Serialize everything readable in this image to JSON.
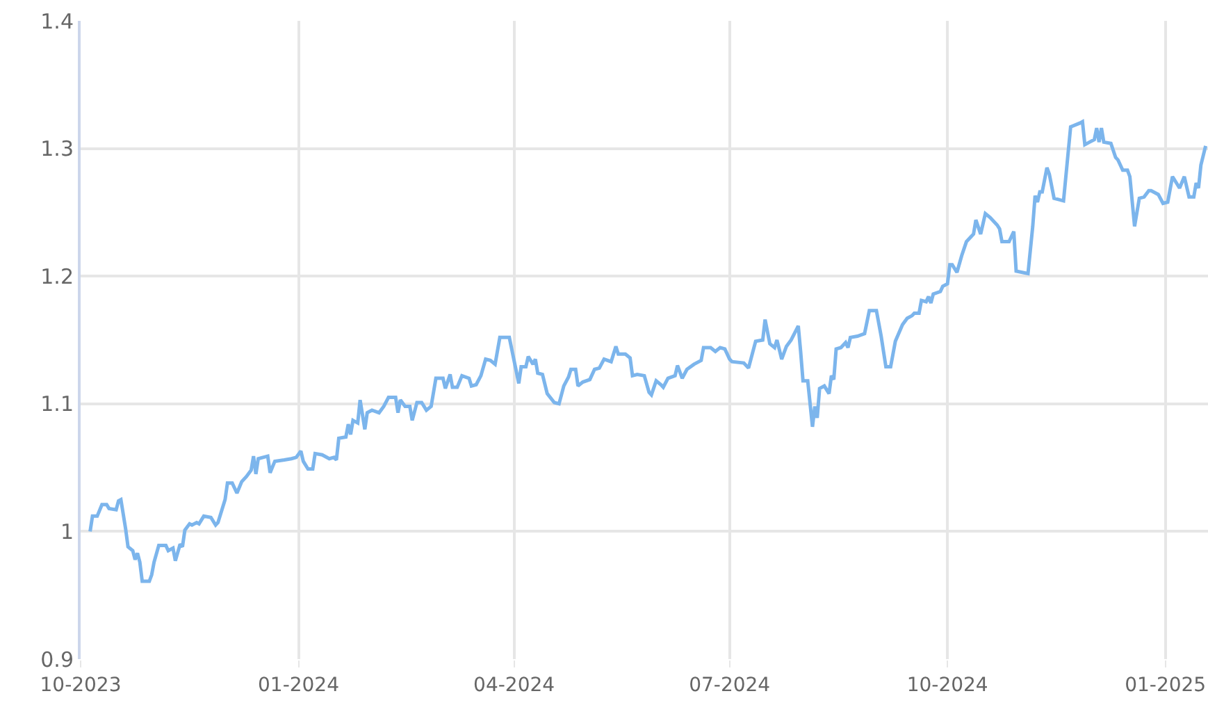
{
  "chart_data": {
    "type": "line",
    "xlim": [
      "2023-10-01",
      "2025-01-19"
    ],
    "ylim": [
      0.9,
      1.4
    ],
    "xticks": [
      {
        "value": "2023-10-01",
        "label": "10-2023"
      },
      {
        "value": "2024-01-01",
        "label": "01-2024"
      },
      {
        "value": "2024-04-01",
        "label": "04-2024"
      },
      {
        "value": "2024-07-01",
        "label": "07-2024"
      },
      {
        "value": "2024-10-01",
        "label": "10-2024"
      },
      {
        "value": "2025-01-01",
        "label": "01-2025"
      }
    ],
    "yticks": [
      0.9,
      1,
      1.1,
      1.2,
      1.3,
      1.4
    ],
    "grid": true,
    "marker": "none",
    "line_style": "solid",
    "x": [
      "2023-10-05",
      "2023-10-06",
      "2023-10-08",
      "2023-10-10",
      "2023-10-12",
      "2023-10-13",
      "2023-10-16",
      "2023-10-17",
      "2023-10-18",
      "2023-10-20",
      "2023-10-21",
      "2023-10-23",
      "2023-10-24",
      "2023-10-25",
      "2023-10-26",
      "2023-10-27",
      "2023-10-30",
      "2023-10-31",
      "2023-11-01",
      "2023-11-03",
      "2023-11-06",
      "2023-11-07",
      "2023-11-09",
      "2023-11-10",
      "2023-11-12",
      "2023-11-13",
      "2023-11-14",
      "2023-11-16",
      "2023-11-17",
      "2023-11-19",
      "2023-11-20",
      "2023-11-22",
      "2023-11-25",
      "2023-11-27",
      "2023-11-28",
      "2023-12-01",
      "2023-12-02",
      "2023-12-04",
      "2023-12-06",
      "2023-12-08",
      "2023-12-10",
      "2023-12-12",
      "2023-12-13",
      "2023-12-14",
      "2023-12-15",
      "2023-12-17",
      "2023-12-19",
      "2023-12-20",
      "2023-12-22",
      "2023-12-26",
      "2023-12-29",
      "2023-12-31",
      "2024-01-02",
      "2024-01-03",
      "2024-01-05",
      "2024-01-07",
      "2024-01-08",
      "2024-01-11",
      "2024-01-14",
      "2024-01-16",
      "2024-01-17",
      "2024-01-18",
      "2024-01-21",
      "2024-01-22",
      "2024-01-23",
      "2024-01-24",
      "2024-01-26",
      "2024-01-27",
      "2024-01-29",
      "2024-01-30",
      "2024-02-01",
      "2024-02-04",
      "2024-02-06",
      "2024-02-08",
      "2024-02-11",
      "2024-02-12",
      "2024-02-13",
      "2024-02-15",
      "2024-02-17",
      "2024-02-18",
      "2024-02-20",
      "2024-02-22",
      "2024-02-24",
      "2024-02-26",
      "2024-02-28",
      "2024-03-02",
      "2024-03-03",
      "2024-03-05",
      "2024-03-06",
      "2024-03-08",
      "2024-03-10",
      "2024-03-13",
      "2024-03-14",
      "2024-03-16",
      "2024-03-18",
      "2024-03-20",
      "2024-03-22",
      "2024-03-24",
      "2024-03-26",
      "2024-03-30",
      "2024-04-01",
      "2024-04-03",
      "2024-04-04",
      "2024-04-06",
      "2024-04-07",
      "2024-04-09",
      "2024-04-10",
      "2024-04-11",
      "2024-04-13",
      "2024-04-15",
      "2024-04-18",
      "2024-04-20",
      "2024-04-22",
      "2024-04-24",
      "2024-04-25",
      "2024-04-27",
      "2024-04-28",
      "2024-04-30",
      "2024-05-03",
      "2024-05-05",
      "2024-05-07",
      "2024-05-09",
      "2024-05-12",
      "2024-05-14",
      "2024-05-15",
      "2024-05-18",
      "2024-05-20",
      "2024-05-21",
      "2024-05-23",
      "2024-05-26",
      "2024-05-28",
      "2024-05-29",
      "2024-05-31",
      "2024-06-02",
      "2024-06-03",
      "2024-06-05",
      "2024-06-08",
      "2024-06-09",
      "2024-06-11",
      "2024-06-13",
      "2024-06-16",
      "2024-06-19",
      "2024-06-20",
      "2024-06-23",
      "2024-06-25",
      "2024-06-27",
      "2024-06-29",
      "2024-07-01",
      "2024-07-02",
      "2024-07-07",
      "2024-07-09",
      "2024-07-12",
      "2024-07-15",
      "2024-07-16",
      "2024-07-18",
      "2024-07-20",
      "2024-07-21",
      "2024-07-23",
      "2024-07-25",
      "2024-07-27",
      "2024-07-30",
      "2024-07-31",
      "2024-08-01",
      "2024-08-03",
      "2024-08-05",
      "2024-08-06",
      "2024-08-07",
      "2024-08-08",
      "2024-08-10",
      "2024-08-12",
      "2024-08-13",
      "2024-08-14",
      "2024-08-15",
      "2024-08-17",
      "2024-08-19",
      "2024-08-20",
      "2024-08-21",
      "2024-08-24",
      "2024-08-27",
      "2024-08-29",
      "2024-09-01",
      "2024-09-03",
      "2024-09-04",
      "2024-09-05",
      "2024-09-07",
      "2024-09-09",
      "2024-09-12",
      "2024-09-14",
      "2024-09-16",
      "2024-09-17",
      "2024-09-19",
      "2024-09-20",
      "2024-09-22",
      "2024-09-23",
      "2024-09-24",
      "2024-09-25",
      "2024-09-28",
      "2024-09-29",
      "2024-10-01",
      "2024-10-02",
      "2024-10-03",
      "2024-10-05",
      "2024-10-07",
      "2024-10-09",
      "2024-10-11",
      "2024-10-12",
      "2024-10-13",
      "2024-10-15",
      "2024-10-17",
      "2024-10-19",
      "2024-10-22",
      "2024-10-23",
      "2024-10-24",
      "2024-10-27",
      "2024-10-29",
      "2024-10-30",
      "2024-11-04",
      "2024-11-06",
      "2024-11-07",
      "2024-11-08",
      "2024-11-09",
      "2024-11-10",
      "2024-11-12",
      "2024-11-13",
      "2024-11-15",
      "2024-11-19",
      "2024-11-22",
      "2024-11-26",
      "2024-11-27",
      "2024-11-28",
      "2024-11-30",
      "2024-12-02",
      "2024-12-03",
      "2024-12-04",
      "2024-12-05",
      "2024-12-06",
      "2024-12-09",
      "2024-12-11",
      "2024-12-12",
      "2024-12-14",
      "2024-12-16",
      "2024-12-17",
      "2024-12-19",
      "2024-12-21",
      "2024-12-23",
      "2024-12-25",
      "2024-12-26",
      "2024-12-29",
      "2024-12-31",
      "2025-01-02",
      "2025-01-04",
      "2025-01-07",
      "2025-01-09",
      "2025-01-11",
      "2025-01-13",
      "2025-01-14",
      "2025-01-15",
      "2025-01-16",
      "2025-01-18"
    ],
    "series": [
      {
        "color": "#7cb5ec",
        "values": [
          1.0,
          1.012,
          1.012,
          1.021,
          1.021,
          1.018,
          1.017,
          1.024,
          1.025,
          1.002,
          0.988,
          0.985,
          0.978,
          0.983,
          0.976,
          0.961,
          0.961,
          0.966,
          0.976,
          0.989,
          0.989,
          0.985,
          0.987,
          0.977,
          0.99,
          0.988,
          1.001,
          1.006,
          1.005,
          1.007,
          1.006,
          1.012,
          1.011,
          1.005,
          1.007,
          1.025,
          1.038,
          1.038,
          1.03,
          1.039,
          1.043,
          1.048,
          1.059,
          1.045,
          1.057,
          1.058,
          1.059,
          1.046,
          1.055,
          1.056,
          1.057,
          1.058,
          1.063,
          1.055,
          1.049,
          1.049,
          1.061,
          1.06,
          1.057,
          1.058,
          1.056,
          1.073,
          1.074,
          1.084,
          1.076,
          1.087,
          1.085,
          1.103,
          1.08,
          1.093,
          1.095,
          1.093,
          1.098,
          1.105,
          1.105,
          1.093,
          1.103,
          1.098,
          1.098,
          1.087,
          1.101,
          1.101,
          1.095,
          1.098,
          1.12,
          1.12,
          1.112,
          1.123,
          1.113,
          1.113,
          1.122,
          1.12,
          1.114,
          1.115,
          1.122,
          1.135,
          1.134,
          1.131,
          1.152,
          1.152,
          1.134,
          1.116,
          1.129,
          1.129,
          1.137,
          1.131,
          1.135,
          1.124,
          1.123,
          1.108,
          1.101,
          1.1,
          1.114,
          1.121,
          1.127,
          1.127,
          1.114,
          1.117,
          1.119,
          1.127,
          1.128,
          1.135,
          1.133,
          1.145,
          1.139,
          1.139,
          1.136,
          1.122,
          1.123,
          1.122,
          1.109,
          1.107,
          1.118,
          1.115,
          1.113,
          1.12,
          1.122,
          1.13,
          1.12,
          1.127,
          1.131,
          1.134,
          1.144,
          1.144,
          1.141,
          1.144,
          1.143,
          1.135,
          1.133,
          1.132,
          1.128,
          1.149,
          1.15,
          1.166,
          1.147,
          1.144,
          1.15,
          1.135,
          1.145,
          1.15,
          1.161,
          1.141,
          1.118,
          1.118,
          1.082,
          1.098,
          1.089,
          1.112,
          1.114,
          1.108,
          1.122,
          1.119,
          1.143,
          1.144,
          1.148,
          1.144,
          1.152,
          1.153,
          1.155,
          1.173,
          1.173,
          1.153,
          1.141,
          1.129,
          1.129,
          1.149,
          1.162,
          1.167,
          1.169,
          1.171,
          1.171,
          1.181,
          1.18,
          1.184,
          1.179,
          1.186,
          1.188,
          1.192,
          1.194,
          1.209,
          1.209,
          1.203,
          1.216,
          1.227,
          1.231,
          1.233,
          1.244,
          1.233,
          1.249,
          1.246,
          1.24,
          1.237,
          1.227,
          1.227,
          1.235,
          1.204,
          1.202,
          1.239,
          1.263,
          1.258,
          1.266,
          1.266,
          1.285,
          1.28,
          1.261,
          1.259,
          1.317,
          1.32,
          1.321,
          1.303,
          1.305,
          1.307,
          1.316,
          1.305,
          1.316,
          1.305,
          1.304,
          1.293,
          1.291,
          1.283,
          1.283,
          1.278,
          1.239,
          1.261,
          1.262,
          1.267,
          1.267,
          1.264,
          1.257,
          1.258,
          1.278,
          1.269,
          1.278,
          1.262,
          1.262,
          1.273,
          1.269,
          1.287,
          1.302
        ]
      }
    ]
  }
}
